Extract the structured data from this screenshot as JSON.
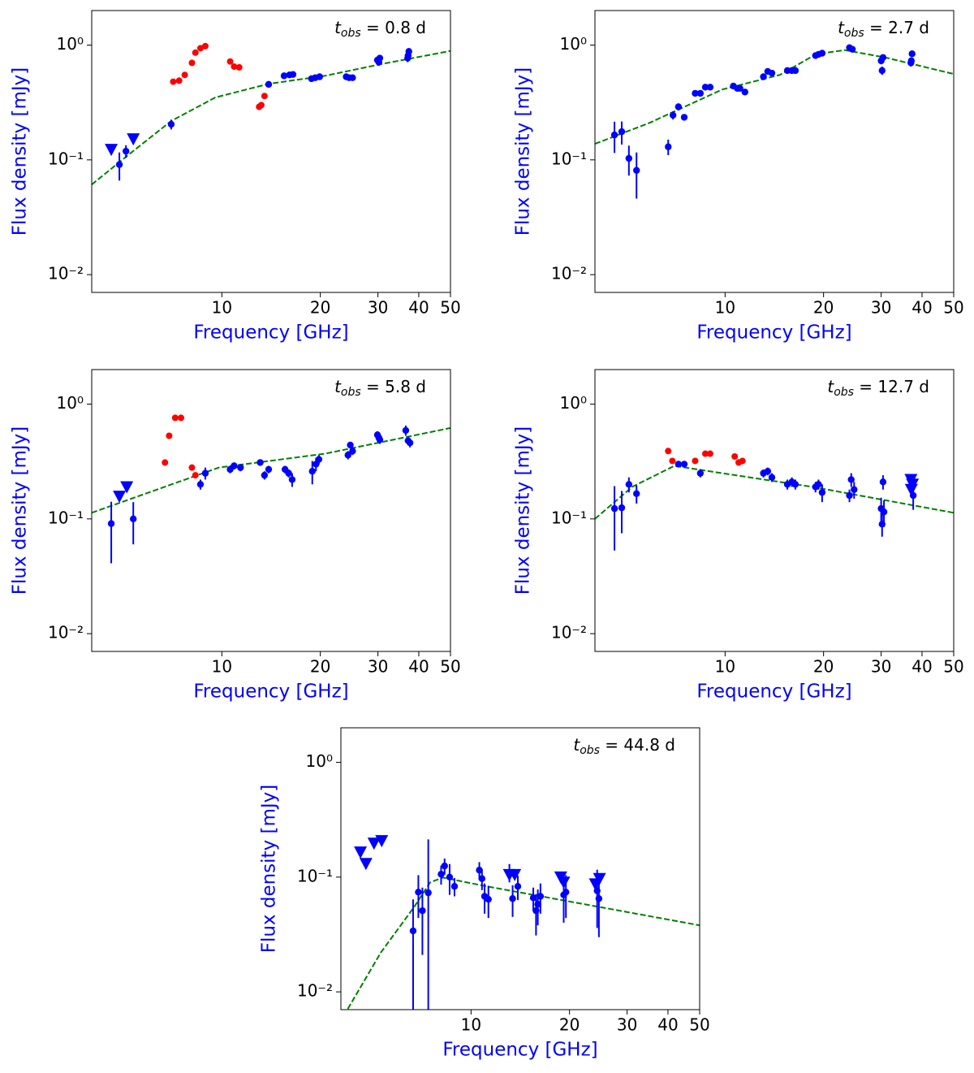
{
  "chart_data": [
    {
      "type": "scatter",
      "annotation": {
        "symbol": "t",
        "subscript": "obs",
        "text": " = 0.8 d"
      },
      "xlabel": "Frequency [GHz]",
      "ylabel": "Flux density [mJy]",
      "xscale": "log",
      "yscale": "log",
      "xlim": [
        4,
        50
      ],
      "ylim": [
        0.007,
        2
      ],
      "xticks": [
        10,
        20,
        30,
        40,
        50
      ],
      "yticks": [
        {
          "value": 0.01,
          "label": "10⁻²"
        },
        {
          "value": 0.1,
          "label": "10⁻¹"
        },
        {
          "value": 1,
          "label": "10⁰"
        }
      ],
      "detections": {
        "color": "#0000ff",
        "x": [
          4.86,
          5.09,
          7.0,
          13.9,
          15.5,
          16.1,
          16.5,
          18.8,
          19.3,
          19.9,
          24.0,
          24.5,
          25.1,
          29.9,
          30.2,
          30.4,
          37.1,
          37.3,
          37.0
        ],
        "values": [
          0.091,
          0.119,
          0.204,
          0.455,
          0.54,
          0.55,
          0.555,
          0.51,
          0.52,
          0.53,
          0.53,
          0.52,
          0.52,
          0.74,
          0.71,
          0.77,
          0.81,
          0.88,
          0.77
        ],
        "errors": [
          0.025,
          0.015,
          0.02,
          0.02,
          0.02,
          0.02,
          0.02,
          0.02,
          0.02,
          0.02,
          0.03,
          0.03,
          0.03,
          0.05,
          0.05,
          0.05,
          0.06,
          0.06,
          0.06
        ]
      },
      "upper_limits": {
        "color": "#0000ff",
        "x": [
          4.59,
          5.36
        ],
        "values": [
          0.123,
          0.152
        ]
      },
      "red_points": {
        "color": "#ff0000",
        "x": [
          7.1,
          7.4,
          7.7,
          8.1,
          8.3,
          8.6,
          8.9,
          10.6,
          10.9,
          11.3,
          13.0,
          13.2,
          13.5
        ],
        "values": [
          0.48,
          0.49,
          0.55,
          0.7,
          0.86,
          0.94,
          0.98,
          0.72,
          0.65,
          0.64,
          0.29,
          0.3,
          0.36
        ]
      },
      "model": {
        "color": "#008000",
        "linestyle": "dashed",
        "x": [
          4,
          5.23,
          7.0,
          9.55,
          13.9,
          20.7,
          30.9,
          50
        ],
        "values": [
          0.061,
          0.113,
          0.218,
          0.35,
          0.46,
          0.54,
          0.686,
          0.89
        ]
      }
    },
    {
      "type": "scatter",
      "annotation": {
        "symbol": "t",
        "subscript": "obs",
        "text": " = 2.7 d"
      },
      "xlabel": "Frequency [GHz]",
      "ylabel": "Flux density [mJy]",
      "xscale": "log",
      "yscale": "log",
      "xlim": [
        4,
        50
      ],
      "ylim": [
        0.007,
        2
      ],
      "xticks": [
        10,
        20,
        30,
        40,
        50
      ],
      "yticks": [
        {
          "value": 0.01,
          "label": "10⁻²"
        },
        {
          "value": 0.1,
          "label": "10⁻¹"
        },
        {
          "value": 1,
          "label": "10⁰"
        }
      ],
      "detections": {
        "color": "#0000ff",
        "x": [
          4.59,
          4.83,
          5.08,
          5.36,
          6.7,
          6.93,
          7.2,
          7.5,
          8.1,
          8.4,
          8.7,
          9.0,
          10.6,
          10.9,
          11.1,
          11.5,
          13.1,
          13.5,
          13.9,
          15.5,
          16.0,
          16.4,
          18.9,
          19.3,
          19.8,
          24.0,
          24.5,
          30.0,
          30.4,
          30.2,
          37.0,
          37.3,
          37.1
        ],
        "values": [
          0.165,
          0.176,
          0.103,
          0.081,
          0.13,
          0.245,
          0.29,
          0.235,
          0.38,
          0.38,
          0.43,
          0.43,
          0.44,
          0.42,
          0.42,
          0.39,
          0.53,
          0.59,
          0.57,
          0.6,
          0.6,
          0.6,
          0.81,
          0.83,
          0.85,
          0.95,
          0.92,
          0.73,
          0.78,
          0.6,
          0.7,
          0.84,
          0.73
        ],
        "errors": [
          0.05,
          0.04,
          0.03,
          0.035,
          0.02,
          0.02,
          0.02,
          0.015,
          0.02,
          0.02,
          0.02,
          0.02,
          0.02,
          0.02,
          0.02,
          0.02,
          0.03,
          0.03,
          0.03,
          0.03,
          0.03,
          0.03,
          0.04,
          0.04,
          0.04,
          0.05,
          0.05,
          0.05,
          0.05,
          0.05,
          0.05,
          0.05,
          0.05
        ]
      },
      "model": {
        "color": "#008000",
        "linestyle": "dashed",
        "x": [
          4,
          5.87,
          9.8,
          14.7,
          19.0,
          23.2,
          30.9,
          50
        ],
        "values": [
          0.138,
          0.21,
          0.41,
          0.55,
          0.835,
          0.905,
          0.78,
          0.56
        ]
      }
    },
    {
      "type": "scatter",
      "annotation": {
        "symbol": "t",
        "subscript": "obs",
        "text": " = 5.8 d"
      },
      "xlabel": "Frequency [GHz]",
      "ylabel": "Flux density [mJy]",
      "xscale": "log",
      "yscale": "log",
      "xlim": [
        4,
        50
      ],
      "ylim": [
        0.007,
        2
      ],
      "xticks": [
        10,
        20,
        30,
        40,
        50
      ],
      "yticks": [
        {
          "value": 0.01,
          "label": "10⁻²"
        },
        {
          "value": 0.1,
          "label": "10⁻¹"
        },
        {
          "value": 1,
          "label": "10⁰"
        }
      ],
      "detections": {
        "color": "#0000ff",
        "x": [
          4.59,
          5.36,
          8.6,
          8.9,
          10.6,
          10.9,
          11.4,
          13.1,
          13.5,
          13.9,
          15.6,
          16.0,
          16.4,
          18.9,
          19.4,
          19.8,
          24.3,
          24.7,
          25.1,
          29.9,
          30.2,
          30.4,
          36.5,
          37.1,
          37.6
        ],
        "values": [
          0.091,
          0.1,
          0.2,
          0.25,
          0.27,
          0.29,
          0.28,
          0.31,
          0.24,
          0.27,
          0.27,
          0.25,
          0.22,
          0.26,
          0.3,
          0.33,
          0.36,
          0.44,
          0.39,
          0.54,
          0.51,
          0.49,
          0.59,
          0.48,
          0.46
        ],
        "errors": [
          0.05,
          0.04,
          0.02,
          0.03,
          0.02,
          0.02,
          0.02,
          0.02,
          0.02,
          0.02,
          0.02,
          0.02,
          0.03,
          0.06,
          0.04,
          0.03,
          0.03,
          0.03,
          0.03,
          0.04,
          0.04,
          0.04,
          0.06,
          0.04,
          0.04
        ]
      },
      "upper_limits": {
        "color": "#0000ff",
        "x": [
          4.86,
          5.12
        ],
        "values": [
          0.157,
          0.19
        ]
      },
      "red_points": {
        "color": "#ff0000",
        "x": [
          6.7,
          6.9,
          7.2,
          7.5,
          8.1,
          8.3
        ],
        "values": [
          0.31,
          0.53,
          0.76,
          0.76,
          0.28,
          0.24
        ]
      },
      "model": {
        "color": "#008000",
        "linestyle": "dashed",
        "x": [
          4,
          9.8,
          20.7,
          50
        ],
        "values": [
          0.113,
          0.28,
          0.37,
          0.62
        ]
      }
    },
    {
      "type": "scatter",
      "annotation": {
        "symbol": "t",
        "subscript": "obs",
        "text": " = 12.7 d"
      },
      "xlabel": "Frequency [GHz]",
      "ylabel": "Flux density [mJy]",
      "xscale": "log",
      "yscale": "log",
      "xlim": [
        4,
        50
      ],
      "ylim": [
        0.007,
        2
      ],
      "xticks": [
        10,
        20,
        30,
        40,
        50
      ],
      "yticks": [
        {
          "value": 0.01,
          "label": "10⁻²"
        },
        {
          "value": 0.1,
          "label": "10⁻¹"
        },
        {
          "value": 1,
          "label": "10⁰"
        }
      ],
      "detections": {
        "color": "#0000ff",
        "x": [
          4.59,
          4.83,
          5.08,
          5.36,
          7.2,
          7.5,
          8.4,
          13.1,
          13.5,
          13.9,
          15.5,
          16.0,
          16.4,
          18.9,
          19.3,
          19.8,
          24.0,
          24.3,
          24.8,
          30.0,
          30.2,
          30.4,
          30.6,
          37.3,
          37.6
        ],
        "values": [
          0.123,
          0.125,
          0.2,
          0.166,
          0.3,
          0.3,
          0.25,
          0.25,
          0.26,
          0.23,
          0.2,
          0.21,
          0.2,
          0.19,
          0.2,
          0.17,
          0.16,
          0.22,
          0.18,
          0.123,
          0.09,
          0.21,
          0.115,
          0.19,
          0.16
        ],
        "errors": [
          0.07,
          0.05,
          0.03,
          0.03,
          0.01,
          0.01,
          0.02,
          0.02,
          0.02,
          0.02,
          0.02,
          0.02,
          0.02,
          0.02,
          0.02,
          0.03,
          0.02,
          0.03,
          0.03,
          0.03,
          0.02,
          0.03,
          0.03,
          0.03,
          0.04
        ]
      },
      "upper_limits": {
        "color": "#0000ff",
        "x": [
          37.0,
          37.4,
          37.1
        ],
        "values": [
          0.22,
          0.2,
          0.18
        ]
      },
      "red_points": {
        "color": "#ff0000",
        "x": [
          6.7,
          6.9,
          8.1,
          8.7,
          9.0,
          10.7,
          11.0,
          11.3
        ],
        "values": [
          0.39,
          0.32,
          0.32,
          0.37,
          0.37,
          0.35,
          0.31,
          0.32
        ]
      },
      "model": {
        "color": "#008000",
        "linestyle": "dashed",
        "x": [
          4,
          5.2,
          7.0,
          9.8,
          18.5,
          50
        ],
        "values": [
          0.1,
          0.19,
          0.29,
          0.25,
          0.19,
          0.113
        ]
      }
    },
    {
      "type": "scatter",
      "annotation": {
        "symbol": "t",
        "subscript": "obs",
        "text": " = 44.8 d"
      },
      "xlabel": "Frequency [GHz]",
      "ylabel": "Flux density [mJy]",
      "xscale": "log",
      "yscale": "log",
      "xlim": [
        4,
        50
      ],
      "ylim": [
        0.007,
        2
      ],
      "xticks": [
        10,
        20,
        30,
        40,
        50
      ],
      "yticks": [
        {
          "value": 0.01,
          "label": "10⁻²"
        },
        {
          "value": 0.1,
          "label": "10⁻¹"
        },
        {
          "value": 1,
          "label": "10⁰"
        }
      ],
      "detections": {
        "color": "#0000ff",
        "x": [
          6.65,
          6.9,
          7.1,
          7.4,
          8.1,
          8.3,
          8.6,
          8.9,
          10.6,
          10.8,
          11.0,
          11.3,
          13.1,
          13.4,
          13.9,
          15.5,
          15.8,
          16.0,
          16.3,
          19.2,
          19.5,
          24.3,
          24.6
        ],
        "values": [
          0.034,
          0.074,
          0.051,
          0.073,
          0.106,
          0.125,
          0.1,
          0.083,
          0.115,
          0.097,
          0.068,
          0.064,
          0.11,
          0.065,
          0.083,
          0.066,
          0.051,
          0.058,
          0.068,
          0.07,
          0.074,
          0.076,
          0.065
        ],
        "errors": [
          0.03,
          0.03,
          0.03,
          0.14,
          0.02,
          0.02,
          0.03,
          0.015,
          0.02,
          0.02,
          0.02,
          0.02,
          0.02,
          0.02,
          0.02,
          0.015,
          0.02,
          0.02,
          0.02,
          0.03,
          0.03,
          0.04,
          0.035
        ]
      },
      "upper_limits": {
        "color": "#0000ff",
        "x": [
          4.59,
          4.77,
          5.05,
          5.33,
          13.1,
          13.6,
          18.8,
          19.2,
          24.0,
          24.7
        ],
        "values": [
          0.165,
          0.131,
          0.197,
          0.207,
          0.105,
          0.105,
          0.1,
          0.09,
          0.087,
          0.097
        ]
      },
      "model": {
        "color": "#008000",
        "linestyle": "dashed",
        "x": [
          4.2,
          5.3,
          6.7,
          7.5,
          8.2,
          11.2,
          50
        ],
        "values": [
          0.0071,
          0.022,
          0.055,
          0.09,
          0.099,
          0.083,
          0.038
        ]
      }
    }
  ]
}
